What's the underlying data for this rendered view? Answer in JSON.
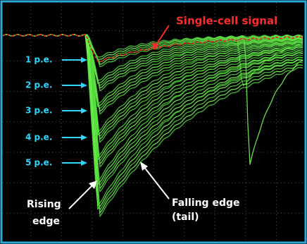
{
  "annotations": {
    "signal": "Single-cell signal",
    "levels": [
      "1 p.e.",
      "2 p.e.",
      "3 p.e.",
      "4 p.e.",
      "5 p.e."
    ],
    "rising": [
      "Rising",
      "edge"
    ],
    "falling": [
      "Falling  edge",
      "(tail)"
    ]
  }
}
